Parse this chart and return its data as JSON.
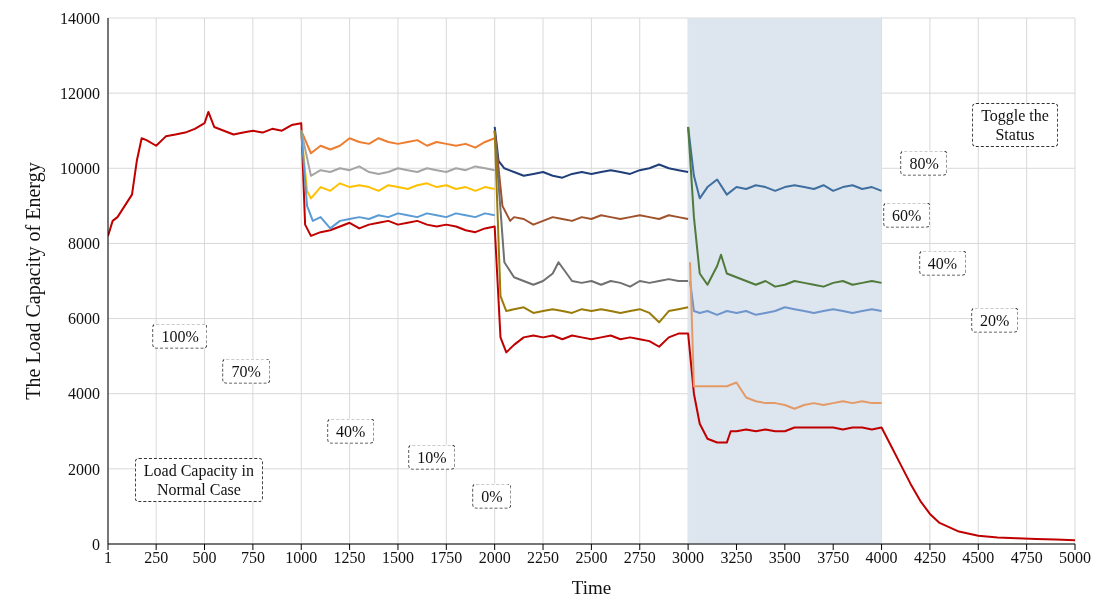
{
  "chart_data": {
    "type": "line",
    "xlabel": "Time",
    "ylabel": "The Load Capacity of Energy",
    "xlim": [
      1,
      5000
    ],
    "xticks": [
      1,
      250,
      500,
      750,
      1000,
      1250,
      1500,
      1750,
      2000,
      2250,
      2500,
      2750,
      3000,
      3250,
      3500,
      3750,
      4000,
      4250,
      4500,
      4750,
      5000
    ],
    "ylim": [
      0,
      14000
    ],
    "yticks": [
      0,
      2000,
      4000,
      6000,
      8000,
      10000,
      12000,
      14000
    ],
    "grid": true,
    "marker": "none",
    "line_style": "solid",
    "bands": [
      {
        "axis": "x",
        "from": 3000,
        "to": 4000,
        "color": "#dde5ee"
      }
    ],
    "series": [
      {
        "color": "#c00000",
        "x": [
          1,
          25,
          50,
          75,
          100,
          125,
          150,
          175,
          200,
          250,
          300,
          350,
          400,
          450,
          500,
          520,
          550,
          600,
          650,
          700,
          750,
          800,
          850,
          900,
          950,
          1000,
          1020,
          1050,
          1100,
          1150,
          1200,
          1250,
          1300,
          1350,
          1400,
          1450,
          1500,
          1550,
          1600,
          1650,
          1700,
          1750,
          1800,
          1850,
          1900,
          1950,
          2000,
          2030,
          2060,
          2100,
          2150,
          2200,
          2250,
          2300,
          2350,
          2400,
          2450,
          2500,
          2550,
          2600,
          2650,
          2700,
          2750,
          2800,
          2850,
          2900,
          2950,
          3000,
          3030,
          3060,
          3100,
          3150,
          3200,
          3220,
          3250,
          3300,
          3350,
          3400,
          3450,
          3500,
          3550,
          3600,
          3650,
          3700,
          3750,
          3800,
          3850,
          3900,
          3950,
          4000,
          4050,
          4100,
          4150,
          4200,
          4250,
          4300,
          4400,
          4500,
          4600,
          4700,
          4800,
          4900,
          5000
        ],
        "values": [
          8200,
          8600,
          8700,
          8900,
          9100,
          9300,
          10200,
          10800,
          10750,
          10600,
          10850,
          10900,
          10950,
          11050,
          11200,
          11500,
          11100,
          11000,
          10900,
          10950,
          11000,
          10950,
          11050,
          11000,
          11150,
          11200,
          8500,
          8200,
          8300,
          8350,
          8450,
          8550,
          8400,
          8500,
          8550,
          8600,
          8500,
          8550,
          8600,
          8500,
          8450,
          8500,
          8450,
          8350,
          8300,
          8400,
          8450,
          5500,
          5100,
          5300,
          5500,
          5550,
          5500,
          5550,
          5450,
          5550,
          5500,
          5450,
          5500,
          5550,
          5450,
          5500,
          5450,
          5400,
          5250,
          5500,
          5600,
          5600,
          4000,
          3200,
          2800,
          2700,
          2700,
          3000,
          3000,
          3050,
          3000,
          3050,
          3000,
          3000,
          3100,
          3100,
          3100,
          3100,
          3100,
          3050,
          3100,
          3100,
          3050,
          3100,
          2600,
          2100,
          1600,
          1150,
          800,
          560,
          330,
          220,
          170,
          150,
          130,
          120,
          100
        ]
      },
      {
        "color": "#ed7d31",
        "x": [
          1000,
          1050,
          1100,
          1150,
          1200,
          1250,
          1300,
          1350,
          1400,
          1450,
          1500,
          1550,
          1600,
          1650,
          1700,
          1750,
          1800,
          1850,
          1900,
          1950,
          2000
        ],
        "values": [
          11000,
          10400,
          10600,
          10500,
          10600,
          10800,
          10700,
          10650,
          10800,
          10700,
          10650,
          10700,
          10750,
          10600,
          10700,
          10650,
          10600,
          10650,
          10550,
          10700,
          10800
        ]
      },
      {
        "color": "#a5a5a5",
        "x": [
          1000,
          1050,
          1100,
          1150,
          1200,
          1250,
          1300,
          1350,
          1400,
          1450,
          1500,
          1550,
          1600,
          1650,
          1700,
          1750,
          1800,
          1850,
          1900,
          1950,
          2000
        ],
        "values": [
          11000,
          9800,
          9950,
          9900,
          10000,
          9950,
          10050,
          9900,
          9850,
          9900,
          10000,
          9950,
          9900,
          10000,
          9950,
          9900,
          10000,
          9950,
          10050,
          10000,
          9950
        ]
      },
      {
        "color": "#ffc000",
        "x": [
          1000,
          1030,
          1050,
          1100,
          1150,
          1200,
          1250,
          1300,
          1350,
          1400,
          1450,
          1500,
          1550,
          1600,
          1650,
          1700,
          1750,
          1800,
          1850,
          1900,
          1950,
          2000
        ],
        "values": [
          11000,
          9400,
          9200,
          9500,
          9400,
          9600,
          9500,
          9550,
          9500,
          9400,
          9550,
          9500,
          9450,
          9550,
          9600,
          9500,
          9550,
          9450,
          9500,
          9400,
          9500,
          9450
        ]
      },
      {
        "color": "#5b9bd5",
        "x": [
          1000,
          1030,
          1060,
          1100,
          1150,
          1200,
          1250,
          1300,
          1350,
          1400,
          1450,
          1500,
          1550,
          1600,
          1650,
          1700,
          1750,
          1800,
          1850,
          1900,
          1950,
          2000
        ],
        "values": [
          11000,
          9000,
          8600,
          8700,
          8400,
          8600,
          8650,
          8700,
          8650,
          8750,
          8700,
          8800,
          8750,
          8700,
          8800,
          8750,
          8700,
          8800,
          8750,
          8700,
          8800,
          8750
        ]
      },
      {
        "color": "#1f3f78",
        "x": [
          2000,
          2020,
          2050,
          2100,
          2150,
          2200,
          2250,
          2300,
          2350,
          2400,
          2450,
          2500,
          2550,
          2600,
          2650,
          2700,
          2750,
          2800,
          2850,
          2900,
          2950,
          3000
        ],
        "values": [
          11100,
          10200,
          10000,
          9900,
          9800,
          9850,
          9900,
          9800,
          9750,
          9850,
          9900,
          9850,
          9900,
          9950,
          9900,
          9850,
          9950,
          10000,
          10100,
          10000,
          9950,
          9900
        ]
      },
      {
        "color": "#a0522d",
        "x": [
          2000,
          2040,
          2080,
          2100,
          2150,
          2200,
          2250,
          2300,
          2350,
          2400,
          2450,
          2500,
          2550,
          2600,
          2650,
          2700,
          2750,
          2800,
          2850,
          2900,
          2950,
          3000
        ],
        "values": [
          11000,
          9000,
          8600,
          8700,
          8650,
          8500,
          8600,
          8700,
          8650,
          8600,
          8700,
          8650,
          8750,
          8700,
          8650,
          8700,
          8750,
          8700,
          8650,
          8750,
          8700,
          8650
        ]
      },
      {
        "color": "#707070",
        "x": [
          2000,
          2050,
          2100,
          2150,
          2200,
          2250,
          2300,
          2330,
          2400,
          2450,
          2500,
          2550,
          2600,
          2650,
          2700,
          2750,
          2800,
          2850,
          2900,
          2950,
          3000
        ],
        "values": [
          11000,
          7500,
          7100,
          7000,
          6900,
          7000,
          7200,
          7500,
          7000,
          6950,
          7000,
          6900,
          7000,
          6950,
          6850,
          7000,
          6950,
          7000,
          7050,
          7000,
          7000
        ]
      },
      {
        "color": "#9a7b0a",
        "x": [
          2000,
          2030,
          2060,
          2100,
          2150,
          2200,
          2250,
          2300,
          2350,
          2400,
          2450,
          2500,
          2550,
          2600,
          2650,
          2700,
          2750,
          2800,
          2850,
          2900,
          2950,
          3000
        ],
        "values": [
          11000,
          6600,
          6200,
          6250,
          6300,
          6150,
          6200,
          6250,
          6200,
          6150,
          6250,
          6200,
          6250,
          6200,
          6150,
          6200,
          6250,
          6150,
          5900,
          6200,
          6250,
          6300
        ]
      },
      {
        "color": "#3f6f9f",
        "x": [
          3000,
          3030,
          3060,
          3100,
          3150,
          3200,
          3250,
          3300,
          3350,
          3400,
          3450,
          3500,
          3550,
          3600,
          3650,
          3700,
          3750,
          3800,
          3850,
          3900,
          3950,
          4000
        ],
        "values": [
          11100,
          9800,
          9200,
          9500,
          9700,
          9300,
          9500,
          9450,
          9550,
          9500,
          9400,
          9500,
          9550,
          9500,
          9450,
          9550,
          9400,
          9500,
          9550,
          9450,
          9500,
          9400
        ]
      },
      {
        "color": "#4f7a3a",
        "x": [
          3000,
          3030,
          3060,
          3100,
          3150,
          3170,
          3200,
          3250,
          3300,
          3350,
          3400,
          3450,
          3500,
          3550,
          3600,
          3650,
          3700,
          3750,
          3800,
          3850,
          3900,
          3950,
          4000
        ],
        "values": [
          11100,
          8700,
          7200,
          6900,
          7400,
          7700,
          7200,
          7100,
          7000,
          6900,
          7000,
          6850,
          6900,
          7000,
          6950,
          6900,
          6850,
          6950,
          7000,
          6900,
          6950,
          7000,
          6950
        ]
      },
      {
        "color": "#6f95cc",
        "x": [
          3010,
          3030,
          3060,
          3100,
          3150,
          3200,
          3250,
          3300,
          3350,
          3400,
          3450,
          3500,
          3550,
          3600,
          3650,
          3700,
          3750,
          3800,
          3850,
          3900,
          3950,
          4000
        ],
        "values": [
          7000,
          6200,
          6150,
          6200,
          6100,
          6200,
          6150,
          6200,
          6100,
          6150,
          6200,
          6300,
          6250,
          6200,
          6150,
          6200,
          6250,
          6200,
          6150,
          6200,
          6250,
          6200
        ]
      },
      {
        "color": "#e49a66",
        "x": [
          3010,
          3030,
          3100,
          3200,
          3250,
          3300,
          3350,
          3400,
          3450,
          3500,
          3550,
          3600,
          3650,
          3700,
          3750,
          3800,
          3850,
          3900,
          3950,
          4000
        ],
        "values": [
          7500,
          4200,
          4200,
          4200,
          4300,
          3900,
          3800,
          3750,
          3750,
          3700,
          3600,
          3700,
          3750,
          3700,
          3750,
          3800,
          3750,
          3800,
          3750,
          3750
        ]
      }
    ],
    "annotations": [
      "100%",
      "70%",
      "40%",
      "10%",
      "0%",
      "Load Capacity in Normal Case",
      "Toggle the Status",
      "80%",
      "60%",
      "40%",
      "20%"
    ]
  }
}
